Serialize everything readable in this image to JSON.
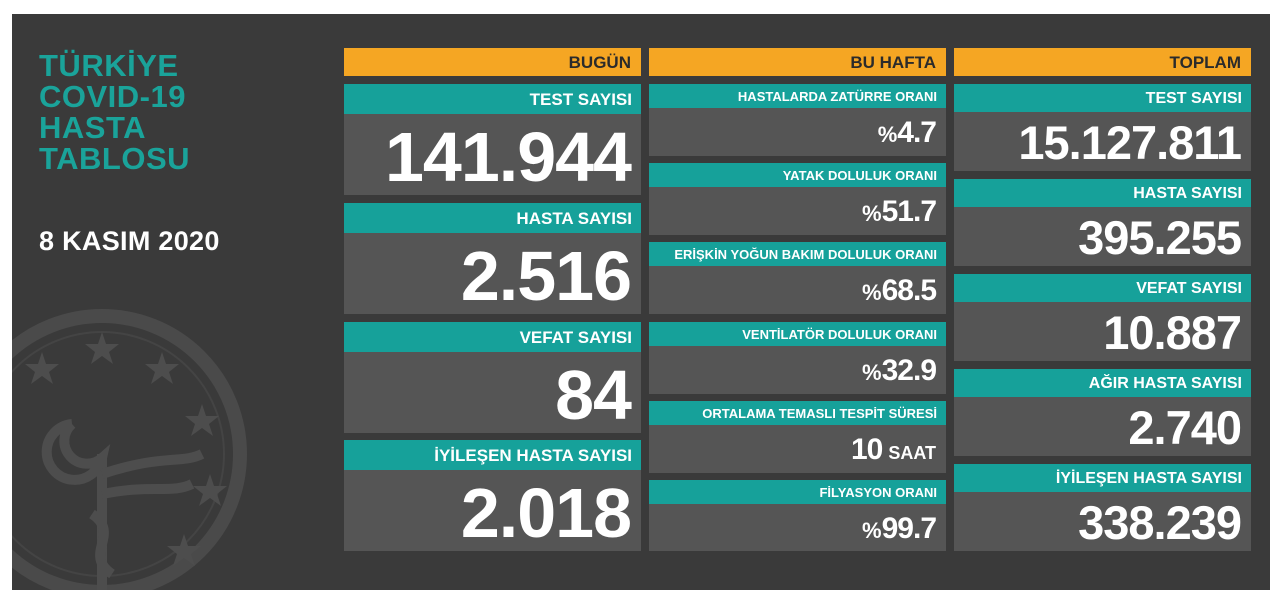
{
  "title_lines": [
    "TÜRKİYE",
    "COVID-19",
    "HASTA",
    "TABLOSU"
  ],
  "date": "8 KASIM 2020",
  "colors": {
    "accent": "#f5a623",
    "teal": "#16a19a",
    "panel": "#3a3a3a",
    "card": "#555555"
  },
  "today": {
    "header": "BUGÜN",
    "test": {
      "label": "TEST SAYISI",
      "value": "141.944"
    },
    "cases": {
      "label": "HASTA SAYISI",
      "value": "2.516"
    },
    "deaths": {
      "label": "VEFAT SAYISI",
      "value": "84"
    },
    "recovered": {
      "label": "İYİLEŞEN HASTA SAYISI",
      "value": "2.018"
    }
  },
  "week": {
    "header": "BU HAFTA",
    "pneumonia": {
      "label": "HASTALARDA ZATÜRRE ORANI",
      "prefix": "%",
      "value": "4.7"
    },
    "bed": {
      "label": "YATAK DOLULUK ORANI",
      "prefix": "%",
      "value": "51.7"
    },
    "icu": {
      "label": "ERİŞKİN YOĞUN BAKIM DOLULUK ORANI",
      "prefix": "%",
      "value": "68.5"
    },
    "ventilator": {
      "label": "VENTİLATÖR DOLULUK ORANI",
      "prefix": "%",
      "value": "32.9"
    },
    "contact": {
      "label": "ORTALAMA TEMASLI TESPİT SÜRESİ",
      "value": "10",
      "unit": "SAAT"
    },
    "filiation": {
      "label": "FİLYASYON ORANI",
      "prefix": "%",
      "value": "99.7"
    }
  },
  "total": {
    "header": "TOPLAM",
    "test": {
      "label": "TEST SAYISI",
      "value": "15.127.811"
    },
    "cases": {
      "label": "HASTA SAYISI",
      "value": "395.255"
    },
    "deaths": {
      "label": "VEFAT SAYISI",
      "value": "10.887"
    },
    "severe": {
      "label": "AĞIR HASTA SAYISI",
      "value": "2.740"
    },
    "recovered": {
      "label": "İYİLEŞEN HASTA SAYISI",
      "value": "338.239"
    }
  }
}
